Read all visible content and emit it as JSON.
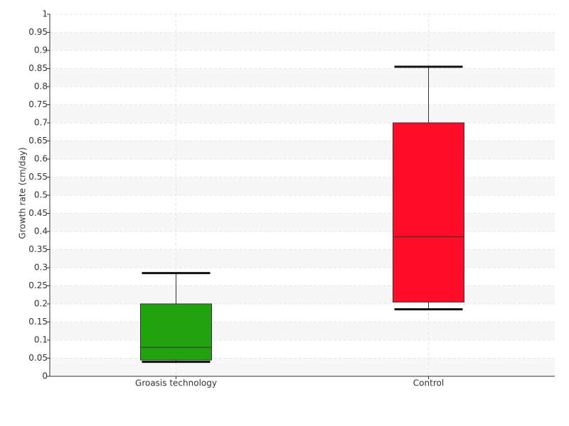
{
  "chart_data": {
    "type": "box",
    "y_label": "Growth rate (cm/day)",
    "categories": [
      "Groasis technology",
      "Control"
    ],
    "boxes": [
      {
        "min": 0.04,
        "q1": 0.045,
        "median": 0.08,
        "q3": 0.2,
        "max": 0.285,
        "color": "#21a30f"
      },
      {
        "min": 0.185,
        "q1": 0.205,
        "median": 0.385,
        "q3": 0.7,
        "max": 0.855,
        "color": "#ff0d28"
      }
    ],
    "ylim": [
      0,
      1
    ],
    "yticks": [
      0,
      0.05,
      0.1,
      0.15,
      0.2,
      0.25,
      0.3,
      0.35,
      0.4,
      0.45,
      0.5,
      0.55,
      0.6,
      0.65,
      0.7,
      0.75,
      0.8,
      0.85,
      0.9,
      0.95,
      1
    ],
    "grid": true
  }
}
